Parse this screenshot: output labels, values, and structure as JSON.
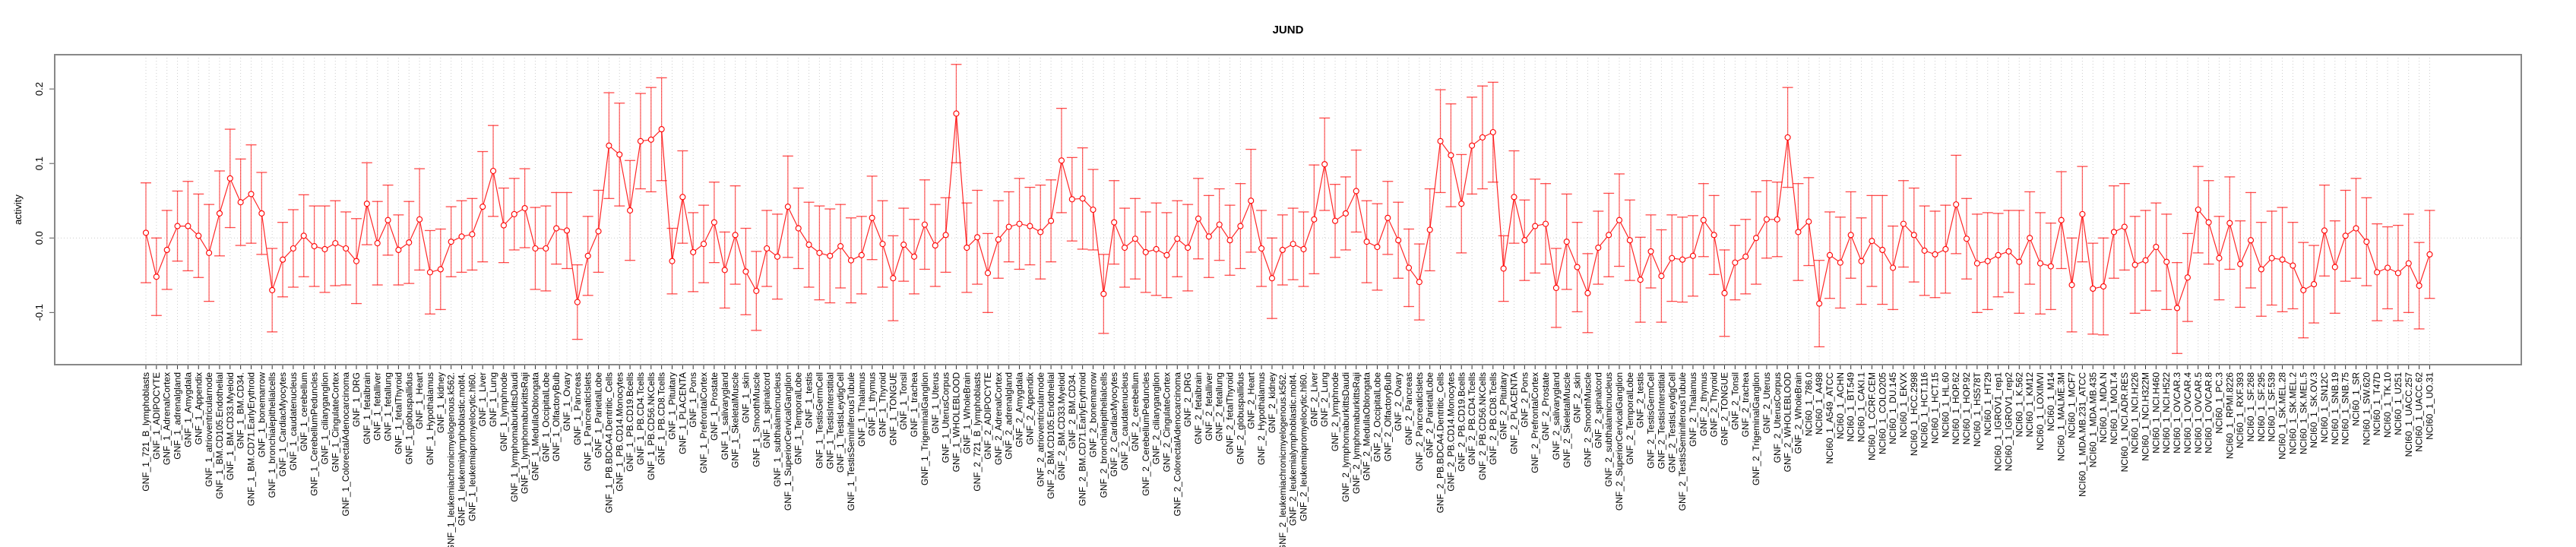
{
  "chart_data": {
    "type": "line",
    "title": "JUND",
    "xlabel": "",
    "ylabel": "activity",
    "ylim": [
      -0.17,
      0.246
    ],
    "yticks": [
      "-0.1",
      "0.0",
      "0.1",
      "0.2"
    ],
    "ytick_values": [
      -0.1,
      0.0,
      0.1,
      0.2
    ],
    "grid": "dotted vertical at each category, horizontal at 0",
    "error_bars": true,
    "color": "#ff0000",
    "categories": [
      "GNF_1_721_B_lymphoblasts",
      "GNF_1_ADIPOCYTE",
      "GNF_1_AdrenalCortex",
      "GNF_1_adrenalgland",
      "GNF_1_Amygdala",
      "GNF_1_Appendix",
      "GNF_1_atrioventricularnode",
      "GNF_1_BM.CD105.Endothelial",
      "GNF_1_BM.CD33.Myeloid",
      "GNF_1_BM.CD34.",
      "GNF_1_BM.CD71.EarlyErythroid",
      "GNF_1_bonemarrow",
      "GNF_1_bronchialepithelialcells",
      "GNF_1_CardiacMyocytes",
      "GNF_1_caudatenucleus",
      "GNF_1_cerebellum",
      "GNF_1_CerebellumPeduncles",
      "GNF_1_ciliaryganglion",
      "GNF_1_CingulateCortex",
      "GNF_1_ColorectalAdenocarcinoma",
      "GNF_1_DRG",
      "GNF_1_fetalbrain",
      "GNF_1_fetalliver",
      "GNF_1_fetallung",
      "GNF_1_fetalThyroid",
      "GNF_1_globuspallidus",
      "GNF_1_Heart",
      "GNF_1_Hypothalamus",
      "GNF_1_kidney",
      "GNF_1_leukemiachronicmyelogenous.k562.",
      "GNF_1_leukemialymphoblastic.molt4.",
      "GNF_1_leukemiapromyelocytic.hl60.",
      "GNF_1_Liver",
      "GNF_1_Lung",
      "GNF_1_lymphnode",
      "GNF_1_lymphomaburkittsDaudi",
      "GNF_1_lymphomaburkittsRaji",
      "GNF_1_MedullaOblongata",
      "GNF_1_OccipitalLobe",
      "GNF_1_OlfactoryBulb",
      "GNF_1_Ovary",
      "GNF_1_Pancreas",
      "GNF_1_PancreaticIslets",
      "GNF_1_ParietalLobe",
      "GNF_1_PB.BDCA4.Dentritic_Cells",
      "GNF_1_PB.CD14.Monocytes",
      "GNF_1_PB.CD19.Bcells",
      "GNF_1_PB.CD4.Tcells",
      "GNF_1_PB.CD56.NKCells",
      "GNF_1_PB.CD8.Tcells",
      "GNF_1_Pituitary",
      "GNF_1_PLACENTA",
      "GNF_1_Pons",
      "GNF_1_PrefrontalCortex",
      "GNF_1_Prostate",
      "GNF_1_salivarygland",
      "GNF_1_SkeletalMuscle",
      "GNF_1_skin",
      "GNF_1_SmoothMuscle",
      "GNF_1_spinalcord",
      "GNF_1_subthalamicnucleus",
      "GNF_1_SuperiorCervicalGanglion",
      "GNF_1_TemporalLobe",
      "GNF_1_testis",
      "GNF_1_TestisGermCell",
      "GNF_1_TestisInterstitial",
      "GNF_1_TestisLeydigCell",
      "GNF_1_TestisSeminiferousTubule",
      "GNF_1_Thalamus",
      "GNF_1_thymus",
      "GNF_1_Thyroid",
      "GNF_1_TONGUE",
      "GNF_1_Tonsil",
      "GNF_1_trachea",
      "GNF_1_TrigeminalGanglion",
      "GNF_1_Uterus",
      "GNF_1_UterusCorpus",
      "GNF_1_WHOLEBLOOD",
      "GNF_1_WholeBrain",
      "GNF_2_721_B_lymphoblasts",
      "GNF_2_ADIPOCYTE",
      "GNF_2_AdrenalCortex",
      "GNF_2_adrenalgland",
      "GNF_2_Amygdala",
      "GNF_2_Appendix",
      "GNF_2_atrioventricularnode",
      "GNF_2_BM.CD105.Endothelial",
      "GNF_2_BM.CD33.Myeloid",
      "GNF_2_BM.CD34.",
      "GNF_2_BM.CD71.EarlyErythroid",
      "GNF_2_bonemarrow",
      "GNF_2_bronchialepithelialcells",
      "GNF_2_CardiacMyocytes",
      "GNF_2_caudatenucleus",
      "GNF_2_cerebellum",
      "GNF_2_CerebellumPeduncles",
      "GNF_2_ciliaryganglion",
      "GNF_2_CingulateCortex",
      "GNF_2_ColorectalAdenocarcinoma",
      "GNF_2_DRG",
      "GNF_2_fetalbrain",
      "GNF_2_fetalliver",
      "GNF_2_fetallung",
      "GNF_2_fetalThyroid",
      "GNF_2_globuspallidus",
      "GNF_2_Heart",
      "GNF_2_Hypothalamus",
      "GNF_2_kidney",
      "GNF_2_leukemiachronicmyelogenous.k562.",
      "GNF_2_leukemialymphoblastic.molt4.",
      "GNF_2_leukemiapromyelocytic.hl60.",
      "GNF_2_Liver",
      "GNF_2_Lung",
      "GNF_2_lymphnode",
      "GNF_2_lymphomaburkittsDaudi",
      "GNF_2_lymphomaburkittsRaji",
      "GNF_2_MedullaOblongata",
      "GNF_2_OccipitalLobe",
      "GNF_2_OlfactoryBulb",
      "GNF_2_Ovary",
      "GNF_2_Pancreas",
      "GNF_2_PancreaticIslets",
      "GNF_2_ParietalLobe",
      "GNF_2_PB.BDCA4.Dentritic_Cells",
      "GNF_2_PB.CD14.Monocytes",
      "GNF_2_PB.CD19.Bcells",
      "GNF_2_PB.CD4.Tcells",
      "GNF_2_PB.CD56.NKCells",
      "GNF_2_PB.CD8.Tcells",
      "GNF_2_Pituitary",
      "GNF_2_PLACENTA",
      "GNF_2_Pons",
      "GNF_2_PrefrontalCortex",
      "GNF_2_Prostate",
      "GNF_2_salivarygland",
      "GNF_2_SkeletalMuscle",
      "GNF_2_skin",
      "GNF_2_SmoothMuscle",
      "GNF_2_spinalcord",
      "GNF_2_subthalamicnucleus",
      "GNF_2_SuperiorCervicalGanglion",
      "GNF_2_TemporalLobe",
      "GNF_2_testis",
      "GNF_2_TestisGermCell",
      "GNF_2_TestisInterstitial",
      "GNF_2_TestisLeydigCell",
      "GNF_2_TestisSeminiferousTubule",
      "GNF_2_Thalamus",
      "GNF_2_thymus",
      "GNF_2_Thyroid",
      "GNF_2_TONGUE",
      "GNF_2_Tonsil",
      "GNF_2_trachea",
      "GNF_2_TrigeminalGanglion",
      "GNF_2_Uterus",
      "GNF_2_UterusCorpus",
      "GNF_2_WHOLEBLOOD",
      "GNF_2_WholeBrain",
      "NCI60_1_786.0",
      "NCI60_1_A498",
      "NCI60_1_A549_ATCC",
      "NCI60_1_ACHN",
      "NCI60_1_BT.549",
      "NCI60_1_CAKI.1",
      "NCI60_1_CCRF.CEM",
      "NCI60_1_COLO205",
      "NCI60_1_DU.145",
      "NCI60_1_EKVX",
      "NCI60_1_HCC.2998",
      "NCI60_1_HCT.116",
      "NCI60_1_HCT.15",
      "NCI60_1_HL.60",
      "NCI60_1_HOP.62",
      "NCI60_1_HOP.92",
      "NCI60_1_HS578T",
      "NCI60_1_HT29",
      "NCI60_1_IGROV1_rep1",
      "NCI60_1_IGROV1_rep2",
      "NCI60_1_K.562",
      "NCI60_1_KM12",
      "NCI60_1_LOXIMVI",
      "NCI60_1_M14",
      "NCI60_1_MALME.3M",
      "NCI60_1_MCF7",
      "NCI60_1_MDA.MB.231_ATCC",
      "NCI60_1_MDA.MB.435",
      "NCI60_1_MDA.N",
      "NCI60_1_MOLT.4",
      "NCI60_1_NCI.ADR.RES",
      "NCI60_1_NCI.H226",
      "NCI60_1_NCI.H322M",
      "NCI60_1_NCI.H460",
      "NCI60_1_NCI.H522",
      "NCI60_1_OVCAR.3",
      "NCI60_1_OVCAR.4",
      "NCI60_1_OVCAR.5",
      "NCI60_1_OVCAR.8",
      "NCI60_1_PC.3",
      "NCI60_1_RPMI.8226",
      "NCI60_1_RXF.393",
      "NCI60_1_SF.268",
      "NCI60_1_SF.295",
      "NCI60_1_SF.539",
      "NCI60_1_SK.MEL.28",
      "NCI60_1_SK.MEL.2",
      "NCI60_1_SK.MEL.5",
      "NCI60_1_SK.OV.3",
      "NCI60_1_SN12C",
      "NCI60_1_SNB.19",
      "NCI60_1_SNB.75",
      "NCI60_1_SR",
      "NCI60_1_SW.620",
      "NCI60_1_T47D",
      "NCI60_1_TK.10",
      "NCI60_1_U251",
      "NCI60_1_UACC.257",
      "NCI60_1_UACC.62",
      "NCI60_1_UO.31"
    ],
    "values": [
      0.007,
      -0.052,
      -0.016,
      0.016,
      0.016,
      0.003,
      -0.02,
      0.033,
      0.08,
      0.048,
      0.059,
      0.033,
      -0.07,
      -0.029,
      -0.014,
      0.003,
      -0.011,
      -0.015,
      -0.007,
      -0.014,
      -0.031,
      0.046,
      -0.007,
      0.024,
      -0.016,
      -0.006,
      0.025,
      -0.046,
      -0.042,
      -0.005,
      0.002,
      0.005,
      0.042,
      0.09,
      0.017,
      0.032,
      0.04,
      -0.014,
      -0.014,
      0.013,
      0.01,
      -0.086,
      -0.024,
      0.009,
      0.124,
      0.112,
      0.037,
      0.13,
      0.132,
      0.146,
      -0.031,
      0.055,
      -0.019,
      -0.008,
      0.021,
      -0.043,
      0.004,
      -0.045,
      -0.071,
      -0.014,
      -0.025,
      0.042,
      0.013,
      -0.009,
      -0.02,
      -0.024,
      -0.011,
      -0.03,
      -0.023,
      0.027,
      -0.008,
      -0.054,
      -0.009,
      -0.025,
      0.018,
      -0.01,
      0.004,
      0.167,
      -0.013,
      0.001,
      -0.047,
      -0.002,
      0.015,
      0.019,
      0.016,
      0.008,
      0.023,
      0.104,
      0.052,
      0.053,
      0.038,
      -0.075,
      0.021,
      -0.013,
      -0.001,
      -0.019,
      -0.015,
      -0.023,
      -0.001,
      -0.013,
      0.026,
      0.002,
      0.018,
      -0.003,
      0.016,
      0.05,
      -0.014,
      -0.054,
      -0.016,
      -0.008,
      -0.015,
      0.025,
      0.099,
      0.023,
      0.033,
      0.063,
      -0.005,
      -0.012,
      0.027,
      -0.003,
      -0.04,
      -0.059,
      0.011,
      0.13,
      0.111,
      0.046,
      0.124,
      0.135,
      0.142,
      -0.041,
      0.055,
      -0.003,
      0.016,
      0.019,
      -0.067,
      -0.005,
      -0.039,
      -0.074,
      -0.013,
      0.004,
      0.024,
      -0.003,
      -0.056,
      -0.018,
      -0.051,
      -0.027,
      -0.029,
      -0.024,
      0.024,
      0.004,
      -0.074,
      -0.033,
      -0.025,
      0.0,
      0.025,
      0.025,
      0.135,
      0.008,
      0.022,
      -0.088,
      -0.023,
      -0.033,
      0.004,
      -0.031,
      -0.004,
      -0.016,
      -0.04,
      0.019,
      0.004,
      -0.017,
      -0.022,
      -0.015,
      0.045,
      -0.001,
      -0.034,
      -0.031,
      -0.023,
      -0.018,
      -0.032,
      0.0,
      -0.034,
      -0.038,
      0.024,
      -0.063,
      0.032,
      -0.068,
      -0.065,
      0.008,
      0.015,
      -0.036,
      -0.03,
      -0.012,
      -0.032,
      -0.094,
      -0.053,
      0.038,
      0.021,
      -0.027,
      0.02,
      -0.035,
      -0.003,
      -0.042,
      -0.027,
      -0.029,
      -0.037,
      -0.07,
      -0.062,
      0.01,
      -0.039,
      0.003,
      0.013,
      -0.005,
      -0.046,
      -0.04,
      -0.047,
      -0.034,
      -0.064,
      -0.022
    ],
    "errors": [
      0.067,
      0.052,
      0.053,
      0.047,
      0.06,
      0.056,
      0.065,
      0.057,
      0.066,
      0.058,
      0.066,
      0.055,
      0.056,
      0.05,
      0.052,
      0.055,
      0.054,
      0.058,
      0.057,
      0.049,
      0.057,
      0.055,
      0.056,
      0.047,
      0.047,
      0.055,
      0.068,
      0.056,
      0.054,
      0.047,
      0.048,
      0.048,
      0.074,
      0.061,
      0.05,
      0.048,
      0.053,
      0.055,
      0.057,
      0.048,
      0.051,
      0.05,
      0.053,
      0.055,
      0.071,
      0.069,
      0.067,
      0.064,
      0.07,
      0.069,
      0.044,
      0.062,
      0.053,
      0.052,
      0.054,
      0.051,
      0.066,
      0.058,
      0.053,
      0.051,
      0.057,
      0.068,
      0.054,
      0.057,
      0.063,
      0.063,
      0.056,
      0.057,
      0.052,
      0.056,
      0.058,
      0.057,
      0.049,
      0.05,
      0.06,
      0.055,
      0.05,
      0.066,
      0.06,
      0.063,
      0.053,
      0.052,
      0.047,
      0.061,
      0.052,
      0.063,
      0.055,
      0.07,
      0.056,
      0.068,
      0.054,
      0.053,
      0.056,
      0.053,
      0.054,
      0.054,
      0.062,
      0.057,
      0.051,
      0.058,
      0.054,
      0.055,
      0.048,
      0.047,
      0.057,
      0.069,
      0.051,
      0.054,
      0.047,
      0.048,
      0.05,
      0.073,
      0.062,
      0.049,
      0.049,
      0.055,
      0.055,
      0.058,
      0.049,
      0.051,
      0.052,
      0.051,
      0.055,
      0.069,
      0.069,
      0.066,
      0.065,
      0.069,
      0.067,
      0.044,
      0.062,
      0.054,
      0.063,
      0.054,
      0.053,
      0.064,
      0.06,
      0.053,
      0.049,
      0.056,
      0.062,
      0.054,
      0.057,
      0.049,
      0.062,
      0.058,
      0.057,
      0.054,
      0.049,
      0.053,
      0.058,
      0.05,
      0.05,
      0.062,
      0.052,
      0.05,
      0.067,
      0.065,
      0.059,
      0.058,
      0.058,
      0.061,
      0.058,
      0.058,
      0.061,
      0.073,
      0.056,
      0.058,
      0.063,
      0.06,
      0.058,
      0.059,
      0.066,
      0.054,
      0.066,
      0.065,
      0.056,
      0.055,
      0.069,
      0.062,
      0.068,
      0.058,
      0.065,
      0.063,
      0.064,
      0.061,
      0.065,
      0.062,
      0.058,
      0.065,
      0.067,
      0.059,
      0.064,
      0.061,
      0.059,
      0.058,
      0.056,
      0.056,
      0.062,
      0.058,
      0.064,
      0.063,
      0.063,
      0.07,
      0.058,
      0.064,
      0.052,
      0.061,
      0.062,
      0.061,
      0.067,
      0.059,
      0.065,
      0.055,
      0.064,
      0.066,
      0.058,
      0.059
    ]
  }
}
